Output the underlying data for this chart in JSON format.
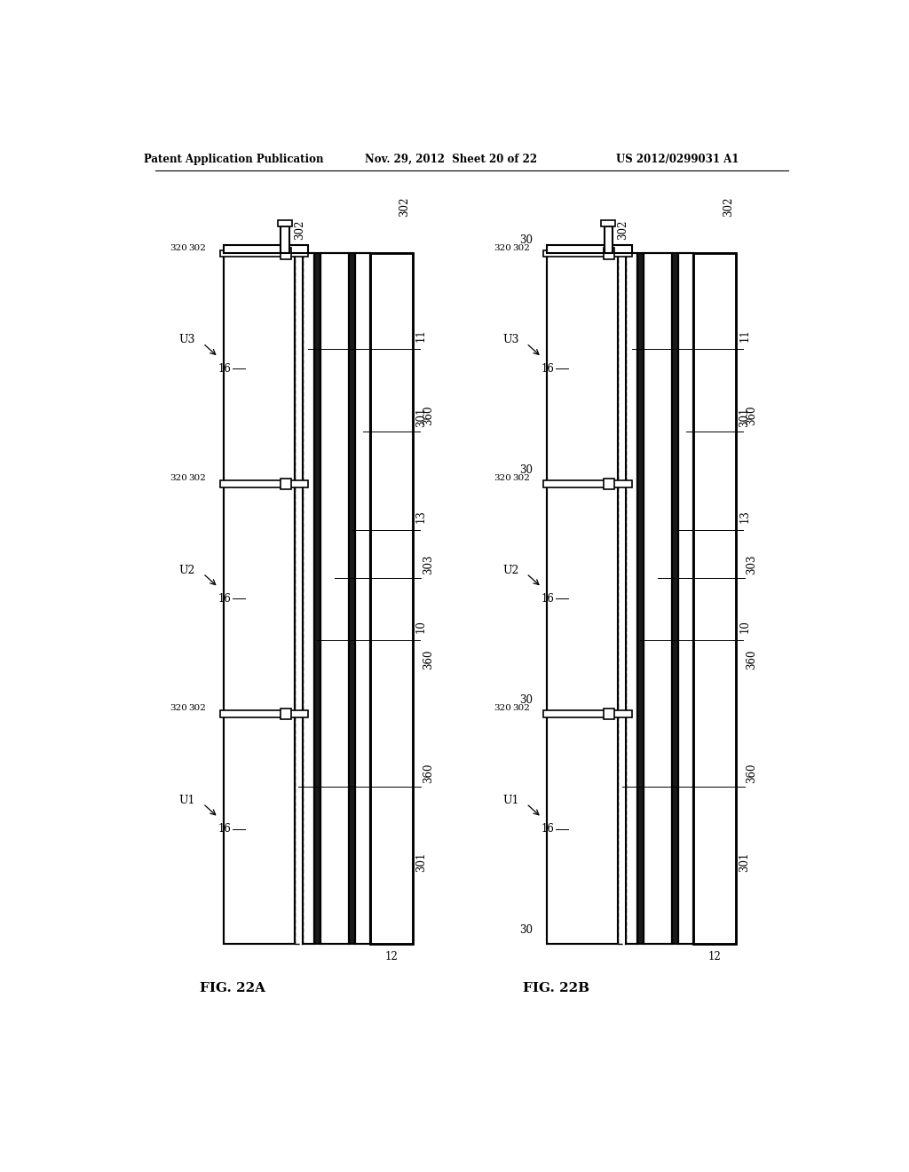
{
  "title_left": "Patent Application Publication",
  "title_center": "Nov. 29, 2012  Sheet 20 of 22",
  "title_right": "US 2012/0299031 A1",
  "fig_label_A": "FIG. 22A",
  "fig_label_B": "FIG. 22B",
  "background_color": "#ffffff",
  "line_color": "#000000"
}
